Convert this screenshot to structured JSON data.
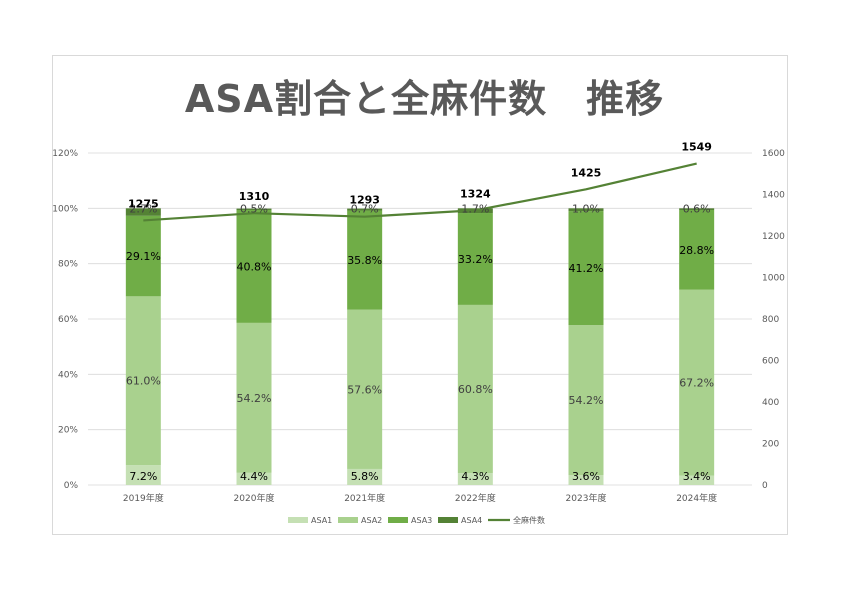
{
  "chart_data": {
    "type": "bar",
    "stacked": true,
    "title": "ASA割合と全麻件数　推移",
    "categories": [
      "2019年度",
      "2020年度",
      "2021年度",
      "2022年度",
      "2023年度",
      "2024年度"
    ],
    "series": [
      {
        "name": "ASA1",
        "axis": "left",
        "color": "#c5e0b4",
        "values": [
          7.2,
          4.4,
          5.8,
          4.3,
          3.6,
          3.4
        ],
        "labels": [
          "7.2%",
          "4.4%",
          "5.8%",
          "4.3%",
          "3.6%",
          "3.4%"
        ]
      },
      {
        "name": "ASA2",
        "axis": "left",
        "color": "#a9d18e",
        "values": [
          61.0,
          54.2,
          57.6,
          60.8,
          54.2,
          67.2
        ],
        "labels": [
          "61.0%",
          "54.2%",
          "57.6%",
          "60.8%",
          "54.2%",
          "67.2%"
        ]
      },
      {
        "name": "ASA3",
        "axis": "left",
        "color": "#70ad47",
        "values": [
          29.1,
          40.8,
          35.8,
          33.2,
          41.2,
          28.8
        ],
        "labels": [
          "29.1%",
          "40.8%",
          "35.8%",
          "33.2%",
          "41.2%",
          "28.8%"
        ]
      },
      {
        "name": "ASA4",
        "axis": "left",
        "color": "#548235",
        "values": [
          2.7,
          0.5,
          0.7,
          1.7,
          1.0,
          0.6
        ],
        "labels": [
          "2.7%",
          "0.5%",
          "0.7%",
          "1.7%",
          "1.0%",
          "0.6%"
        ]
      },
      {
        "name": "全麻件数",
        "type": "line",
        "axis": "right",
        "color": "#548235",
        "values": [
          1275,
          1310,
          1293,
          1324,
          1425,
          1549
        ],
        "labels": [
          "1275",
          "1310",
          "1293",
          "1324",
          "1425",
          "1549"
        ]
      }
    ],
    "y_left": {
      "ticks": [
        "0%",
        "20%",
        "40%",
        "60%",
        "80%",
        "100%",
        "120%"
      ],
      "ylim": [
        0,
        120
      ]
    },
    "y_right": {
      "ticks": [
        "0",
        "200",
        "400",
        "600",
        "800",
        "1000",
        "1200",
        "1400",
        "1600"
      ],
      "ylim": [
        0,
        1600
      ]
    },
    "grid": true,
    "legend": "bottom"
  }
}
